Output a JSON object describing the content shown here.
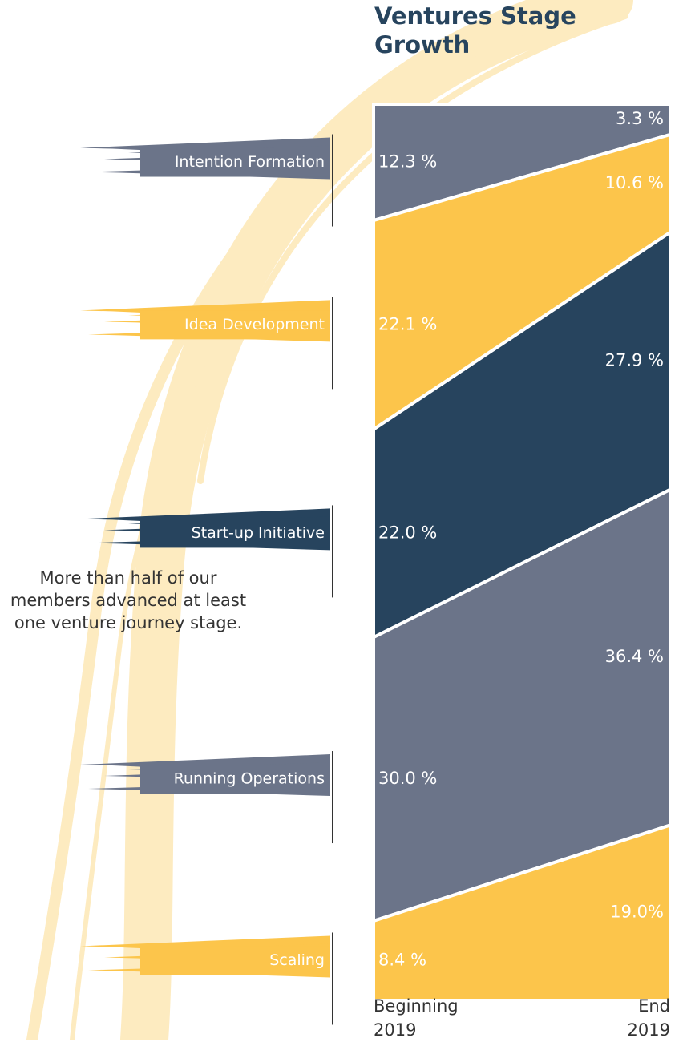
{
  "title": "Ventures Stage Growth",
  "annotation": "More than half of our members advanced at least one venture journey stage.",
  "chart_data": {
    "type": "area",
    "categories": [
      "Beginning 2019",
      "End 2019"
    ],
    "series": [
      {
        "name": "Intention Formation",
        "color": "#6b7489",
        "values": [
          12.3,
          3.3
        ],
        "value_labels": [
          "12.3 %",
          "3.3 %"
        ]
      },
      {
        "name": "Idea Development",
        "color": "#fcc54b",
        "values": [
          22.1,
          10.6
        ],
        "value_labels": [
          "22.1 %",
          "10.6 %"
        ]
      },
      {
        "name": "Start-up Initiative",
        "color": "#27445e",
        "values": [
          22.0,
          27.9
        ],
        "value_labels": [
          "22.0 %",
          "27.9 %"
        ]
      },
      {
        "name": "Running Operations",
        "color": "#6b7489",
        "values": [
          30.0,
          36.4
        ],
        "value_labels": [
          "30.0 %",
          "36.4 %"
        ]
      },
      {
        "name": "Scaling",
        "color": "#fcc54b",
        "values": [
          8.4,
          19.0
        ],
        "value_labels": [
          "8.4 %",
          "19.0%"
        ]
      }
    ]
  }
}
